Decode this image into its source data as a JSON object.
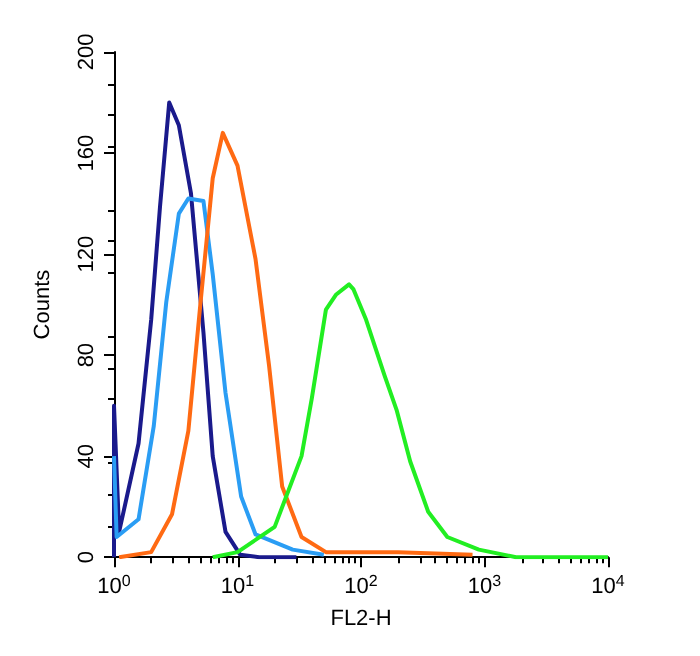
{
  "chart_data": {
    "type": "line",
    "xlabel": "FL2-H",
    "ylabel": "Counts",
    "log": "x",
    "grid": false,
    "marker": "none",
    "xlim": [
      1,
      10000
    ],
    "xticks": [
      {
        "value": 1,
        "label": "10$^{0}$"
      },
      {
        "value": 10,
        "label": "10$^{1}$"
      },
      {
        "value": 100,
        "label": "10$^{2}$"
      },
      {
        "value": 1000,
        "label": "10$^{3}$"
      },
      {
        "value": 10000,
        "label": "10$^{4}$"
      }
    ],
    "ylim": [
      0,
      200
    ],
    "yticks": [
      0,
      40,
      80,
      120,
      160,
      200
    ],
    "series": [
      {
        "color": "#1a1a8c",
        "x": [
          1,
          1,
          1.1,
          1.58,
          2.0,
          2.36,
          2.8,
          3.35,
          4.2,
          5.3,
          6.3,
          8,
          10.5,
          15,
          30
        ],
        "values": [
          0,
          60,
          10,
          45,
          94,
          139,
          180,
          171,
          144,
          89,
          40,
          10,
          1,
          0,
          0
        ]
      },
      {
        "color": "#2a9df4",
        "x": [
          1,
          1.05,
          1.58,
          2.1,
          2.65,
          3.35,
          4.0,
          5.3,
          6.3,
          8,
          10.7,
          14,
          28,
          50
        ],
        "values": [
          40,
          8,
          15,
          52,
          101,
          136,
          142,
          141,
          112,
          65,
          24,
          9,
          3,
          1
        ]
      },
      {
        "color": "#ff6a13",
        "x": [
          1.1,
          2,
          2.95,
          4,
          5,
          6.3,
          7.6,
          10,
          14,
          18,
          23,
          33,
          52,
          200,
          800
        ],
        "values": [
          0,
          2,
          17,
          50,
          100,
          150,
          168,
          155,
          118,
          76,
          28,
          8,
          2,
          2,
          1
        ]
      },
      {
        "color": "#22ee22",
        "x": [
          6.3,
          10,
          20,
          33,
          40,
          52,
          63,
          80,
          87,
          110,
          155,
          195,
          250,
          350,
          500,
          900,
          1800,
          10000
        ],
        "values": [
          0,
          2,
          12,
          40,
          63,
          98,
          104,
          108,
          106,
          94,
          72,
          58,
          38,
          18,
          8,
          3,
          0,
          0
        ]
      }
    ]
  }
}
